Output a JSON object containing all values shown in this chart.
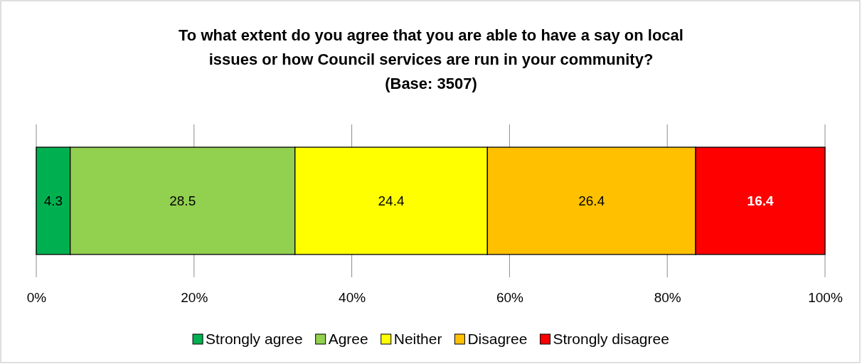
{
  "chart_data": {
    "type": "bar",
    "orientation": "horizontal",
    "stacked": true,
    "title": "To what extent do you agree that you are able to have a say on local\nissues or how Council services are run in your community?\n(Base: 3507)",
    "categories": [
      null
    ],
    "series": [
      {
        "name": "Strongly agree",
        "color": "#00b050",
        "values": [
          4.3
        ]
      },
      {
        "name": "Agree",
        "color": "#92d050",
        "values": [
          28.5
        ]
      },
      {
        "name": "Neither",
        "color": "#ffff00",
        "values": [
          24.4
        ]
      },
      {
        "name": "Disagree",
        "color": "#ffc000",
        "values": [
          26.4
        ]
      },
      {
        "name": "Strongly disagree",
        "color": "#ff0000",
        "values": [
          16.4
        ]
      }
    ],
    "xlim": [
      0,
      100
    ],
    "xticks": [
      {
        "value": 0,
        "label": "0%"
      },
      {
        "value": 20,
        "label": "20%"
      },
      {
        "value": 40,
        "label": "40%"
      },
      {
        "value": 60,
        "label": "60%"
      },
      {
        "value": 80,
        "label": "80%"
      },
      {
        "value": 100,
        "label": "100%"
      }
    ],
    "grid": "x",
    "legend": "bottom",
    "data_labels": true
  }
}
